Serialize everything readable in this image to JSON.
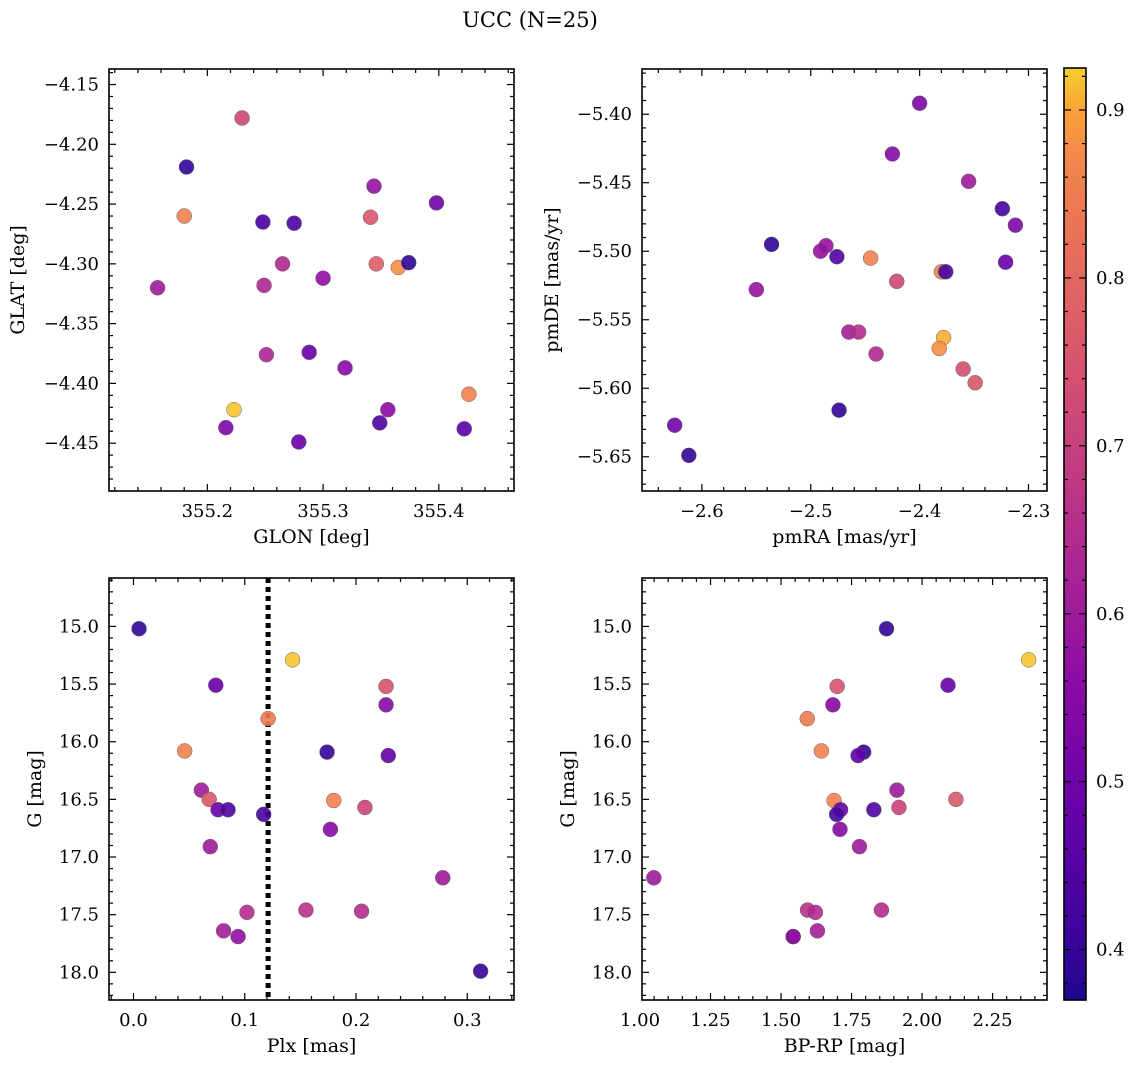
{
  "figure": {
    "title": "UCC (N=25)"
  },
  "colorbar": {
    "cmap": "plasma",
    "min": 0.37,
    "max": 0.925,
    "ticks": [
      0.4,
      0.5,
      0.6,
      0.7,
      0.8,
      0.9
    ]
  },
  "chart_data": [
    {
      "type": "scatter",
      "xlabel": "GLON [deg]",
      "ylabel": "GLAT [deg]",
      "xlim": [
        355.115,
        355.465
      ],
      "ylim": [
        -4.49,
        -4.137
      ],
      "y_inverted": false,
      "xticks": [
        355.2,
        355.3,
        355.4
      ],
      "yticks": [
        -4.45,
        -4.4,
        -4.35,
        -4.3,
        -4.25,
        -4.2,
        -4.15
      ],
      "xtick_decimals": 1,
      "ytick_decimals": 2,
      "points": [
        {
          "x": 355.182,
          "y": -4.219,
          "c": 0.39
        },
        {
          "x": 355.18,
          "y": -4.26,
          "c": 0.86
        },
        {
          "x": 355.23,
          "y": -4.178,
          "c": 0.72
        },
        {
          "x": 355.248,
          "y": -4.265,
          "c": 0.43
        },
        {
          "x": 355.275,
          "y": -4.266,
          "c": 0.44
        },
        {
          "x": 355.157,
          "y": -4.32,
          "c": 0.6
        },
        {
          "x": 355.265,
          "y": -4.3,
          "c": 0.64
        },
        {
          "x": 355.249,
          "y": -4.318,
          "c": 0.63
        },
        {
          "x": 355.3,
          "y": -4.312,
          "c": 0.57
        },
        {
          "x": 355.344,
          "y": -4.235,
          "c": 0.58
        },
        {
          "x": 355.341,
          "y": -4.261,
          "c": 0.76
        },
        {
          "x": 355.346,
          "y": -4.3,
          "c": 0.78
        },
        {
          "x": 355.365,
          "y": -4.303,
          "c": 0.88
        },
        {
          "x": 355.374,
          "y": -4.299,
          "c": 0.39
        },
        {
          "x": 355.398,
          "y": -4.249,
          "c": 0.5
        },
        {
          "x": 355.251,
          "y": -4.376,
          "c": 0.63
        },
        {
          "x": 355.288,
          "y": -4.374,
          "c": 0.49
        },
        {
          "x": 355.319,
          "y": -4.387,
          "c": 0.55
        },
        {
          "x": 355.223,
          "y": -4.422,
          "c": 0.92
        },
        {
          "x": 355.216,
          "y": -4.437,
          "c": 0.53
        },
        {
          "x": 355.279,
          "y": -4.449,
          "c": 0.49
        },
        {
          "x": 355.356,
          "y": -4.422,
          "c": 0.56
        },
        {
          "x": 355.349,
          "y": -4.433,
          "c": 0.44
        },
        {
          "x": 355.422,
          "y": -4.438,
          "c": 0.46
        },
        {
          "x": 355.426,
          "y": -4.409,
          "c": 0.86
        }
      ]
    },
    {
      "type": "scatter",
      "xlabel": "pmRA [mas/yr]",
      "ylabel": "pmDE [mas/yr]",
      "xlim": [
        -2.655,
        -2.283
      ],
      "ylim": [
        -5.675,
        -5.367
      ],
      "y_inverted": false,
      "xticks": [
        -2.6,
        -2.5,
        -2.4,
        -2.3
      ],
      "yticks": [
        -5.65,
        -5.6,
        -5.55,
        -5.5,
        -5.45,
        -5.4
      ],
      "xtick_decimals": 1,
      "ytick_decimals": 2,
      "points": [
        {
          "x": -2.4,
          "y": -5.392,
          "c": 0.53
        },
        {
          "x": -2.425,
          "y": -5.429,
          "c": 0.54
        },
        {
          "x": -2.355,
          "y": -5.449,
          "c": 0.6
        },
        {
          "x": -2.324,
          "y": -5.469,
          "c": 0.42
        },
        {
          "x": -2.312,
          "y": -5.481,
          "c": 0.53
        },
        {
          "x": -2.536,
          "y": -5.495,
          "c": 0.39
        },
        {
          "x": -2.486,
          "y": -5.496,
          "c": 0.58
        },
        {
          "x": -2.491,
          "y": -5.5,
          "c": 0.58
        },
        {
          "x": -2.476,
          "y": -5.504,
          "c": 0.45
        },
        {
          "x": -2.445,
          "y": -5.505,
          "c": 0.86
        },
        {
          "x": -2.321,
          "y": -5.508,
          "c": 0.49
        },
        {
          "x": -2.38,
          "y": -5.515,
          "c": 0.86
        },
        {
          "x": -2.376,
          "y": -5.515,
          "c": 0.43
        },
        {
          "x": -2.421,
          "y": -5.522,
          "c": 0.72
        },
        {
          "x": -2.55,
          "y": -5.528,
          "c": 0.58
        },
        {
          "x": -2.465,
          "y": -5.559,
          "c": 0.61
        },
        {
          "x": -2.456,
          "y": -5.559,
          "c": 0.65
        },
        {
          "x": -2.378,
          "y": -5.563,
          "c": 0.91
        },
        {
          "x": -2.44,
          "y": -5.575,
          "c": 0.64
        },
        {
          "x": -2.382,
          "y": -5.571,
          "c": 0.88
        },
        {
          "x": -2.36,
          "y": -5.586,
          "c": 0.74
        },
        {
          "x": -2.349,
          "y": -5.596,
          "c": 0.76
        },
        {
          "x": -2.474,
          "y": -5.616,
          "c": 0.39
        },
        {
          "x": -2.625,
          "y": -5.627,
          "c": 0.51
        },
        {
          "x": -2.612,
          "y": -5.649,
          "c": 0.4
        }
      ]
    },
    {
      "type": "scatter",
      "xlabel": "Plx [mas]",
      "ylabel": "G [mag]",
      "xlim": [
        -0.022,
        0.342
      ],
      "ylim": [
        14.58,
        18.24
      ],
      "y_inverted": true,
      "xticks": [
        0.0,
        0.1,
        0.2,
        0.3
      ],
      "yticks": [
        15.0,
        15.5,
        16.0,
        16.5,
        17.0,
        17.5,
        18.0
      ],
      "xtick_decimals": 1,
      "ytick_decimals": 1,
      "vline": 0.121,
      "points": [
        {
          "x": 0.005,
          "y": 15.02,
          "c": 0.39
        },
        {
          "x": 0.143,
          "y": 15.29,
          "c": 0.92
        },
        {
          "x": 0.074,
          "y": 15.51,
          "c": 0.49
        },
        {
          "x": 0.227,
          "y": 15.52,
          "c": 0.75
        },
        {
          "x": 0.227,
          "y": 15.68,
          "c": 0.55
        },
        {
          "x": 0.121,
          "y": 15.8,
          "c": 0.85
        },
        {
          "x": 0.046,
          "y": 16.08,
          "c": 0.86
        },
        {
          "x": 0.174,
          "y": 16.09,
          "c": 0.4
        },
        {
          "x": 0.229,
          "y": 16.12,
          "c": 0.48
        },
        {
          "x": 0.061,
          "y": 16.42,
          "c": 0.6
        },
        {
          "x": 0.068,
          "y": 16.5,
          "c": 0.76
        },
        {
          "x": 0.18,
          "y": 16.51,
          "c": 0.86
        },
        {
          "x": 0.076,
          "y": 16.59,
          "c": 0.49
        },
        {
          "x": 0.085,
          "y": 16.59,
          "c": 0.44
        },
        {
          "x": 0.208,
          "y": 16.57,
          "c": 0.71
        },
        {
          "x": 0.117,
          "y": 16.63,
          "c": 0.43
        },
        {
          "x": 0.177,
          "y": 16.76,
          "c": 0.55
        },
        {
          "x": 0.069,
          "y": 16.91,
          "c": 0.6
        },
        {
          "x": 0.278,
          "y": 17.18,
          "c": 0.6
        },
        {
          "x": 0.155,
          "y": 17.46,
          "c": 0.66
        },
        {
          "x": 0.205,
          "y": 17.47,
          "c": 0.65
        },
        {
          "x": 0.102,
          "y": 17.48,
          "c": 0.65
        },
        {
          "x": 0.081,
          "y": 17.64,
          "c": 0.61
        },
        {
          "x": 0.094,
          "y": 17.69,
          "c": 0.57
        },
        {
          "x": 0.312,
          "y": 17.99,
          "c": 0.4
        }
      ]
    },
    {
      "type": "scatter",
      "xlabel": "BP-RP [mag]",
      "ylabel": "G [mag]",
      "xlim": [
        1.007,
        2.443
      ],
      "ylim": [
        14.58,
        18.24
      ],
      "y_inverted": true,
      "xticks": [
        1.0,
        1.25,
        1.5,
        1.75,
        2.0,
        2.25
      ],
      "yticks": [
        15.0,
        15.5,
        16.0,
        16.5,
        17.0,
        17.5,
        18.0
      ],
      "xtick_decimals": 2,
      "ytick_decimals": 1,
      "points": [
        {
          "x": 1.874,
          "y": 15.02,
          "c": 0.39
        },
        {
          "x": 2.378,
          "y": 15.29,
          "c": 0.92
        },
        {
          "x": 2.092,
          "y": 15.51,
          "c": 0.49
        },
        {
          "x": 1.699,
          "y": 15.52,
          "c": 0.75
        },
        {
          "x": 1.684,
          "y": 15.68,
          "c": 0.55
        },
        {
          "x": 1.593,
          "y": 15.8,
          "c": 0.85
        },
        {
          "x": 1.643,
          "y": 16.08,
          "c": 0.86
        },
        {
          "x": 1.793,
          "y": 16.09,
          "c": 0.4
        },
        {
          "x": 1.773,
          "y": 16.12,
          "c": 0.48
        },
        {
          "x": 1.911,
          "y": 16.42,
          "c": 0.6
        },
        {
          "x": 2.12,
          "y": 16.5,
          "c": 0.76
        },
        {
          "x": 1.688,
          "y": 16.51,
          "c": 0.86
        },
        {
          "x": 1.711,
          "y": 16.59,
          "c": 0.49
        },
        {
          "x": 1.829,
          "y": 16.59,
          "c": 0.44
        },
        {
          "x": 1.918,
          "y": 16.57,
          "c": 0.71
        },
        {
          "x": 1.697,
          "y": 16.63,
          "c": 0.43
        },
        {
          "x": 1.709,
          "y": 16.76,
          "c": 0.55
        },
        {
          "x": 1.778,
          "y": 16.91,
          "c": 0.6
        },
        {
          "x": 1.049,
          "y": 17.18,
          "c": 0.6
        },
        {
          "x": 1.594,
          "y": 17.46,
          "c": 0.66
        },
        {
          "x": 1.856,
          "y": 17.46,
          "c": 0.65
        },
        {
          "x": 1.622,
          "y": 17.48,
          "c": 0.65
        },
        {
          "x": 1.629,
          "y": 17.64,
          "c": 0.61
        },
        {
          "x": 1.543,
          "y": 17.69,
          "c": 0.57
        },
        {
          "x": 1.543,
          "y": 17.69,
          "c": 0.57
        }
      ]
    }
  ]
}
